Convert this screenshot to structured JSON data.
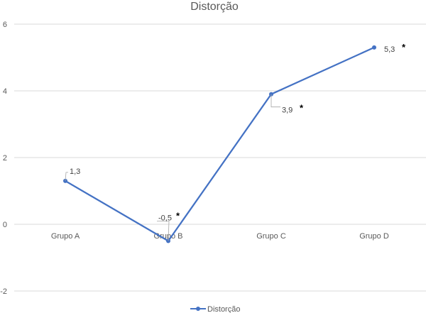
{
  "chart_data": {
    "type": "line",
    "title": "Distorção",
    "categories": [
      "Grupo A",
      "Grupo B",
      "Grupo C",
      "Grupo D"
    ],
    "series": [
      {
        "name": "Distorção",
        "values": [
          1.3,
          -0.5,
          3.9,
          5.3
        ],
        "color": "#4472C4"
      }
    ],
    "data_labels": [
      "1,3",
      "-0,5",
      "3,9",
      "5,3"
    ],
    "significance_marks": [
      "",
      "*",
      "*",
      "*"
    ],
    "y_ticks": [
      -2,
      0,
      2,
      4,
      6
    ],
    "y_tick_labels": [
      "-2",
      "0",
      "2",
      "4",
      "6"
    ],
    "ylim": [
      -2,
      6
    ],
    "grid": true,
    "legend": "bottom",
    "gridline_color": "#d9d9d9",
    "leader_color": "#a6a6a6"
  }
}
